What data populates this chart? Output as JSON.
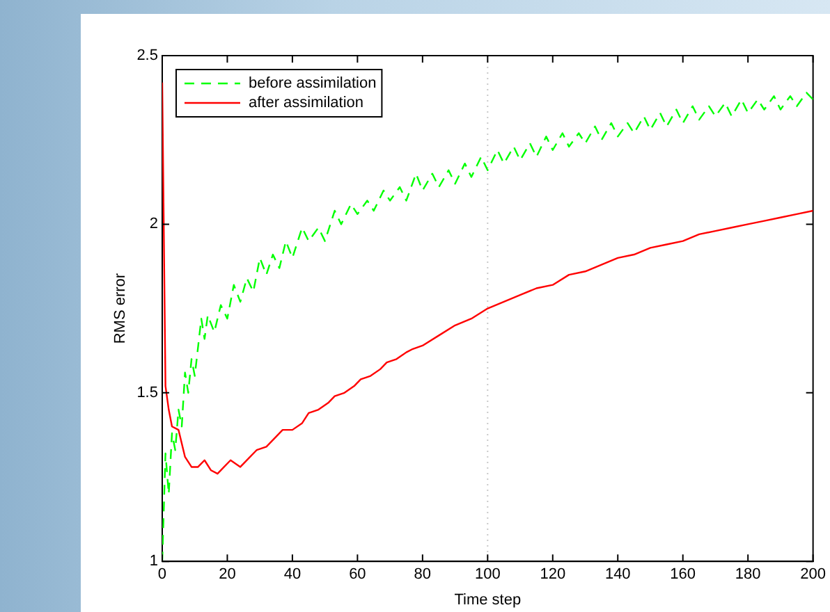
{
  "chart_data": {
    "type": "line",
    "xlabel": "Time step",
    "ylabel": "RMS error",
    "xlim": [
      0,
      200
    ],
    "xticks": [
      0,
      20,
      40,
      60,
      80,
      100,
      120,
      140,
      160,
      180,
      200
    ],
    "ylim": [
      1,
      2.5
    ],
    "yticks": [
      1,
      1.5,
      2,
      2.5
    ],
    "grid": false,
    "legend": "top left",
    "marker": "none",
    "ref_lines": [
      {
        "axis": "x",
        "value": 100,
        "color": "#c8c8c8",
        "line_style": "dotted"
      }
    ],
    "series": [
      {
        "name": "before assimilation",
        "color": "#00ff00",
        "line_style": "dashed",
        "x": [
          0,
          1,
          2,
          3,
          4,
          5,
          6,
          7,
          8,
          9,
          10,
          12,
          13,
          14,
          16,
          18,
          20,
          22,
          24,
          26,
          28,
          30,
          32,
          34,
          36,
          38,
          40,
          43,
          45,
          48,
          50,
          53,
          55,
          58,
          60,
          63,
          65,
          68,
          70,
          73,
          75,
          78,
          80,
          83,
          85,
          88,
          90,
          93,
          95,
          98,
          100,
          103,
          105,
          108,
          110,
          113,
          115,
          118,
          120,
          123,
          125,
          128,
          130,
          133,
          135,
          138,
          140,
          143,
          145,
          148,
          150,
          153,
          155,
          158,
          160,
          163,
          165,
          168,
          170,
          173,
          175,
          178,
          180,
          183,
          185,
          188,
          190,
          193,
          195,
          198,
          200
        ],
        "values": [
          1.0,
          1.32,
          1.2,
          1.38,
          1.33,
          1.45,
          1.4,
          1.56,
          1.5,
          1.6,
          1.55,
          1.72,
          1.66,
          1.73,
          1.68,
          1.76,
          1.72,
          1.82,
          1.77,
          1.84,
          1.8,
          1.9,
          1.85,
          1.91,
          1.87,
          1.95,
          1.9,
          1.99,
          1.95,
          1.99,
          1.95,
          2.04,
          2.0,
          2.06,
          2.03,
          2.07,
          2.04,
          2.1,
          2.07,
          2.11,
          2.07,
          2.15,
          2.1,
          2.15,
          2.11,
          2.16,
          2.12,
          2.18,
          2.14,
          2.2,
          2.16,
          2.22,
          2.18,
          2.23,
          2.19,
          2.24,
          2.2,
          2.26,
          2.22,
          2.27,
          2.23,
          2.27,
          2.24,
          2.29,
          2.25,
          2.3,
          2.26,
          2.3,
          2.27,
          2.32,
          2.28,
          2.33,
          2.29,
          2.34,
          2.3,
          2.35,
          2.31,
          2.35,
          2.32,
          2.36,
          2.32,
          2.37,
          2.33,
          2.37,
          2.34,
          2.38,
          2.34,
          2.38,
          2.35,
          2.39,
          2.37
        ]
      },
      {
        "name": "after assimilation",
        "color": "#ff0000",
        "line_style": "solid",
        "x": [
          0,
          1,
          2,
          3,
          5,
          7,
          9,
          11,
          13,
          15,
          17,
          19,
          21,
          24,
          27,
          29,
          32,
          35,
          37,
          40,
          43,
          45,
          48,
          51,
          53,
          56,
          59,
          61,
          64,
          67,
          69,
          72,
          75,
          77,
          80,
          85,
          90,
          95,
          100,
          105,
          110,
          115,
          120,
          125,
          130,
          135,
          140,
          145,
          150,
          155,
          160,
          165,
          170,
          175,
          180,
          185,
          190,
          195,
          200
        ],
        "values": [
          2.42,
          1.52,
          1.45,
          1.4,
          1.39,
          1.31,
          1.28,
          1.28,
          1.3,
          1.27,
          1.26,
          1.28,
          1.3,
          1.28,
          1.31,
          1.33,
          1.34,
          1.37,
          1.39,
          1.39,
          1.41,
          1.44,
          1.45,
          1.47,
          1.49,
          1.5,
          1.52,
          1.54,
          1.55,
          1.57,
          1.59,
          1.6,
          1.62,
          1.63,
          1.64,
          1.67,
          1.7,
          1.72,
          1.75,
          1.77,
          1.79,
          1.81,
          1.82,
          1.85,
          1.86,
          1.88,
          1.9,
          1.91,
          1.93,
          1.94,
          1.95,
          1.97,
          1.98,
          1.99,
          2.0,
          2.01,
          2.02,
          2.03,
          2.04
        ]
      }
    ]
  }
}
